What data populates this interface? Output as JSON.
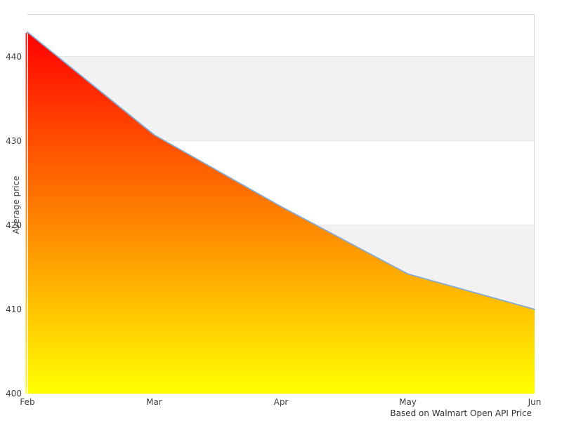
{
  "chart_data": {
    "type": "area",
    "title": "",
    "categories": [
      "Feb",
      "Mar",
      "Apr",
      "May",
      "Jun"
    ],
    "values": [
      442.9,
      430.7,
      422.2,
      414.2,
      410
    ],
    "xlabel": "",
    "ylabel": "Average price",
    "caption": "Based on Walmart Open API Price",
    "ylim": [
      400,
      445
    ],
    "yticks": [
      400,
      410,
      420,
      430,
      440
    ],
    "plot_bands": [
      [
        430,
        440
      ],
      [
        410,
        420
      ]
    ],
    "grid": "alternating-horizontal-bands",
    "legend": "none",
    "colors": {
      "gradient_top": "#ff0000",
      "gradient_bottom": "#ffff00",
      "line": "#85abd3",
      "band_fill": "#f2f2f2",
      "band_edge": "#e6e6e6",
      "border": "#d9d9d9",
      "tick_text": "#404040",
      "caption_text": "#333333",
      "background": "#ffffff"
    }
  }
}
